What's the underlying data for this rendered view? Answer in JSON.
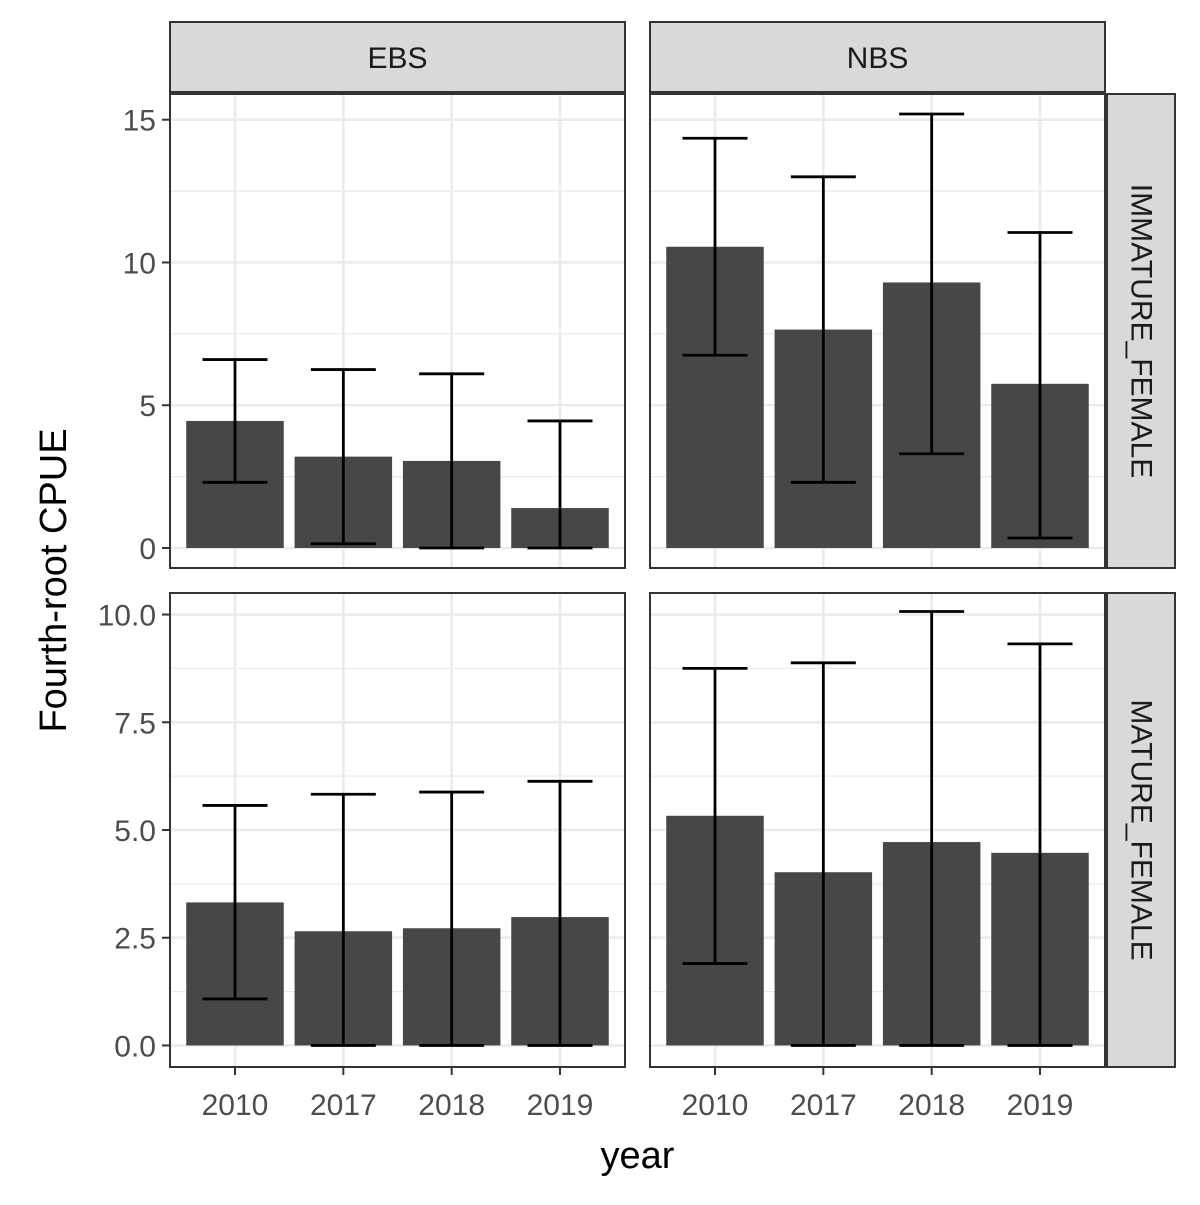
{
  "chart_data": {
    "type": "bar",
    "layout": "facet_grid",
    "xlabel": "year",
    "ylabel": "Fourth-root CPUE",
    "categories": [
      "2010",
      "2017",
      "2018",
      "2019"
    ],
    "col_facets": [
      "EBS",
      "NBS"
    ],
    "row_facets": [
      {
        "label": "IMMATURE_FEMALE",
        "ylim": [
          -0.7,
          15.9
        ],
        "ticks": [
          0,
          5,
          10,
          15
        ],
        "tick_labels": [
          "0",
          "5",
          "10",
          "15"
        ]
      },
      {
        "label": "MATURE_FEMALE",
        "ylim": [
          -0.5,
          10.5
        ],
        "ticks": [
          0,
          2.5,
          5,
          7.5,
          10
        ],
        "tick_labels": [
          "0.0",
          "2.5",
          "5.0",
          "7.5",
          "10.0"
        ]
      }
    ],
    "panels": [
      {
        "row": "IMMATURE_FEMALE",
        "col": "EBS",
        "values": [
          4.45,
          3.2,
          3.05,
          1.4
        ],
        "error_low": [
          2.3,
          0.15,
          0,
          0
        ],
        "error_high": [
          6.6,
          6.25,
          6.1,
          4.45
        ]
      },
      {
        "row": "IMMATURE_FEMALE",
        "col": "NBS",
        "values": [
          10.55,
          7.65,
          9.3,
          5.75
        ],
        "error_low": [
          6.75,
          2.3,
          3.3,
          0.35
        ],
        "error_high": [
          14.35,
          13.0,
          15.2,
          11.05
        ]
      },
      {
        "row": "MATURE_FEMALE",
        "col": "EBS",
        "values": [
          3.32,
          2.65,
          2.72,
          2.98
        ],
        "error_low": [
          1.08,
          0,
          0,
          0
        ],
        "error_high": [
          5.57,
          5.83,
          5.88,
          6.13
        ]
      },
      {
        "row": "MATURE_FEMALE",
        "col": "NBS",
        "values": [
          5.33,
          4.02,
          4.72,
          4.47
        ],
        "error_low": [
          1.9,
          0,
          0,
          0
        ],
        "error_high": [
          8.75,
          8.88,
          10.07,
          9.32
        ]
      }
    ],
    "colors": {
      "bar": "#474747",
      "errorbar": "#000000",
      "grid": "#ebebeb",
      "strip": "#d9d9d9",
      "border": "#333333",
      "text": "#4d4d4d"
    },
    "grid": true,
    "legend": "none"
  }
}
